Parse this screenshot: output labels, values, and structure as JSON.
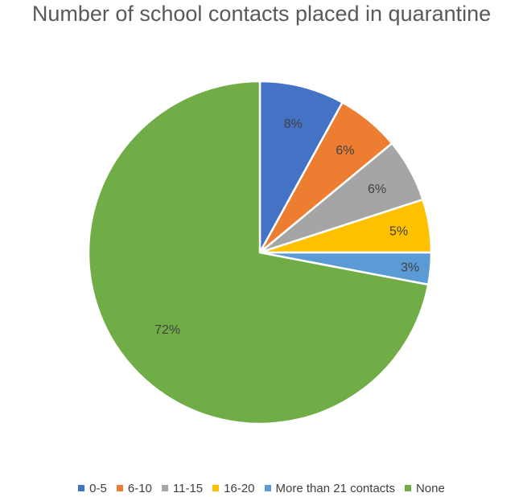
{
  "chart_data": {
    "type": "pie",
    "title": "Number of school contacts placed in quarantine",
    "slices": [
      {
        "label": "0-5",
        "value": 8,
        "data_label": "8%",
        "color": "#4472C4"
      },
      {
        "label": "6-10",
        "value": 6,
        "data_label": "6%",
        "color": "#ED7D31"
      },
      {
        "label": "11-15",
        "value": 6,
        "data_label": "6%",
        "color": "#A5A5A5"
      },
      {
        "label": "16-20",
        "value": 5,
        "data_label": "5%",
        "color": "#FFC000"
      },
      {
        "label": "More than 21 contacts",
        "value": 3,
        "data_label": "3%",
        "color": "#5B9BD5"
      },
      {
        "label": "None",
        "value": 72,
        "data_label": "72%",
        "color": "#70AD47"
      }
    ],
    "legend_position": "bottom"
  }
}
